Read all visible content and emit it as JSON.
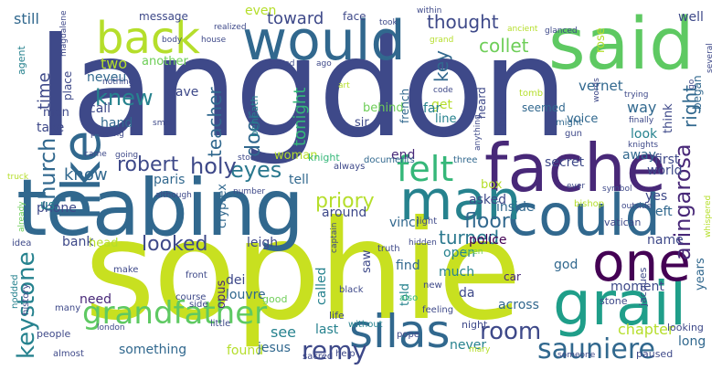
{
  "palette": {
    "dark_purple": "#440154",
    "purple": "#482878",
    "indigo": "#3e4989",
    "blue": "#31688e",
    "steel": "#26828e",
    "teal": "#1f9e89",
    "green": "#35b779",
    "lime": "#6ece58",
    "yellow_green": "#b5de2b",
    "yellow": "#fde725"
  },
  "words": [
    {
      "text": "langdon",
      "color": "#3e4989"
    },
    {
      "text": "sophie",
      "color": "#c8e020"
    },
    {
      "text": "teabing",
      "color": "#31688e"
    },
    {
      "text": "said",
      "color": "#5ec962"
    },
    {
      "text": "would",
      "color": "#31688e"
    },
    {
      "text": "fache",
      "color": "#482878"
    },
    {
      "text": "could",
      "color": "#31688e"
    },
    {
      "text": "back",
      "color": "#b5de2b"
    },
    {
      "text": "grail",
      "color": "#1f9e89"
    },
    {
      "text": "man",
      "color": "#26828e"
    },
    {
      "text": "one",
      "color": "#440154"
    },
    {
      "text": "like",
      "color": "#31688e"
    },
    {
      "text": "silas",
      "color": "#31688e"
    },
    {
      "text": "felt",
      "color": "#35b779"
    },
    {
      "text": "grandfather",
      "color": "#5ec962"
    },
    {
      "text": "keystone",
      "color": "#26828e"
    },
    {
      "text": "sauniere",
      "color": "#31688e"
    },
    {
      "text": "remy",
      "color": "#3e4989"
    },
    {
      "text": "room",
      "color": "#3e4989"
    },
    {
      "text": "church",
      "color": "#31688e"
    },
    {
      "text": "robert",
      "color": "#3e4989"
    },
    {
      "text": "eyes",
      "color": "#2a788e"
    },
    {
      "text": "knew",
      "color": "#26828e"
    },
    {
      "text": "holy",
      "color": "#3e4989"
    },
    {
      "text": "looked",
      "color": "#3e4989"
    },
    {
      "text": "turned",
      "color": "#2a788e"
    },
    {
      "text": "floor",
      "color": "#31688e"
    },
    {
      "text": "priory",
      "color": "#b5de2b"
    },
    {
      "text": "aringarosa",
      "color": "#482878"
    },
    {
      "text": "door",
      "color": "#31688e"
    },
    {
      "text": "teacher",
      "color": "#31688e"
    },
    {
      "text": "tonight",
      "color": "#35b779"
    },
    {
      "text": "key",
      "color": "#31688e"
    },
    {
      "text": "toward",
      "color": "#3e4989"
    },
    {
      "text": "thought",
      "color": "#3e4989"
    },
    {
      "text": "collet",
      "color": "#6ece58"
    },
    {
      "text": "time",
      "color": "#3e4989"
    },
    {
      "text": "right",
      "color": "#31688e"
    },
    {
      "text": "know",
      "color": "#31688e"
    },
    {
      "text": "see",
      "color": "#26828e"
    },
    {
      "text": "chapter",
      "color": "#b5de2b"
    },
    {
      "text": "way",
      "color": "#31688e"
    },
    {
      "text": "still",
      "color": "#31688e"
    },
    {
      "text": "even",
      "color": "#b5de2b"
    },
    {
      "text": "two",
      "color": "#b5de2b"
    },
    {
      "text": "first",
      "color": "#3e4989"
    },
    {
      "text": "away",
      "color": "#31688e"
    },
    {
      "text": "woman",
      "color": "#b5de2b"
    },
    {
      "text": "world",
      "color": "#3e4989"
    },
    {
      "text": "vernet",
      "color": "#31688e"
    },
    {
      "text": "secret",
      "color": "#3e4989"
    },
    {
      "text": "moment",
      "color": "#3e4989"
    },
    {
      "text": "across",
      "color": "#31688e"
    },
    {
      "text": "long",
      "color": "#31688e"
    },
    {
      "text": "found",
      "color": "#b5de2b"
    },
    {
      "text": "jesus",
      "color": "#31688e"
    },
    {
      "text": "never",
      "color": "#26828e"
    },
    {
      "text": "something",
      "color": "#31688e"
    },
    {
      "text": "need",
      "color": "#482878"
    },
    {
      "text": "last",
      "color": "#26828e"
    },
    {
      "text": "bank",
      "color": "#3e4989"
    },
    {
      "text": "head",
      "color": "#b5de2b"
    },
    {
      "text": "leigh",
      "color": "#3e4989"
    },
    {
      "text": "around",
      "color": "#3e4989"
    },
    {
      "text": "inside",
      "color": "#31688e"
    },
    {
      "text": "police",
      "color": "#440154"
    },
    {
      "text": "box",
      "color": "#b5de2b"
    },
    {
      "text": "end",
      "color": "#482878"
    },
    {
      "text": "asked",
      "color": "#3e4989"
    },
    {
      "text": "open",
      "color": "#26828e"
    },
    {
      "text": "find",
      "color": "#31688e"
    },
    {
      "text": "much",
      "color": "#26828e"
    },
    {
      "text": "da",
      "color": "#3e4989"
    },
    {
      "text": "vinci",
      "color": "#31688e"
    },
    {
      "text": "god",
      "color": "#31688e"
    },
    {
      "text": "yes",
      "color": "#3e4989"
    },
    {
      "text": "left",
      "color": "#31688e"
    },
    {
      "text": "name",
      "color": "#3e4989"
    },
    {
      "text": "look",
      "color": "#26828e"
    },
    {
      "text": "think",
      "color": "#3e4989"
    },
    {
      "text": "began",
      "color": "#31688e"
    },
    {
      "text": "years",
      "color": "#31688e"
    },
    {
      "text": "saw",
      "color": "#3e4989"
    },
    {
      "text": "called",
      "color": "#26828e"
    },
    {
      "text": "told",
      "color": "#26828e"
    },
    {
      "text": "opus",
      "color": "#482878"
    },
    {
      "text": "dei",
      "color": "#3e4989"
    },
    {
      "text": "louvre",
      "color": "#31688e"
    },
    {
      "text": "paris",
      "color": "#31688e"
    },
    {
      "text": "cryptex",
      "color": "#31688e"
    },
    {
      "text": "tell",
      "color": "#31688e"
    },
    {
      "text": "phone",
      "color": "#3e4989"
    },
    {
      "text": "us",
      "color": "#26828e"
    },
    {
      "text": "neveu",
      "color": "#31688e"
    },
    {
      "text": "gave",
      "color": "#3e4989"
    },
    {
      "text": "call",
      "color": "#3e4989"
    },
    {
      "text": "hand",
      "color": "#31688e"
    },
    {
      "text": "take",
      "color": "#3e4989"
    },
    {
      "text": "men",
      "color": "#3e4989"
    },
    {
      "text": "another",
      "color": "#6ece58"
    },
    {
      "text": "message",
      "color": "#3e4989"
    },
    {
      "text": "face",
      "color": "#3e4989"
    },
    {
      "text": "voice",
      "color": "#31688e"
    },
    {
      "text": "well",
      "color": "#3e4989"
    },
    {
      "text": "rose",
      "color": "#b5de2b"
    },
    {
      "text": "heard",
      "color": "#3e4989"
    },
    {
      "text": "get",
      "color": "#b5de2b"
    },
    {
      "text": "far",
      "color": "#26828e"
    },
    {
      "text": "line",
      "color": "#26828e"
    },
    {
      "text": "sir",
      "color": "#3e4989"
    },
    {
      "text": "behind",
      "color": "#6ece58"
    },
    {
      "text": "seemed",
      "color": "#31688e"
    },
    {
      "text": "french",
      "color": "#31688e"
    },
    {
      "text": "christ",
      "color": "#3e4989"
    },
    {
      "text": "beneath",
      "color": "#26828e"
    },
    {
      "text": "place",
      "color": "#3e4989"
    },
    {
      "text": "agent",
      "color": "#26828e"
    },
    {
      "text": "knight",
      "color": "#35b779"
    },
    {
      "text": "documents",
      "color": "#31688e"
    },
    {
      "text": "three",
      "color": "#31688e"
    },
    {
      "text": "might",
      "color": "#31688e"
    },
    {
      "text": "gun",
      "color": "#3e4989"
    },
    {
      "text": "jacques",
      "color": "#3e4989"
    },
    {
      "text": "stone",
      "color": "#3e4989"
    },
    {
      "text": "vatican",
      "color": "#3e4989"
    },
    {
      "text": "people",
      "color": "#3e4989"
    },
    {
      "text": "good",
      "color": "#6ece58"
    },
    {
      "text": "life",
      "color": "#3e4989"
    },
    {
      "text": "night",
      "color": "#3e4989"
    },
    {
      "text": "looking",
      "color": "#3e4989"
    },
    {
      "text": "paused",
      "color": "#3e4989"
    },
    {
      "text": "tomb",
      "color": "#b5de2b"
    },
    {
      "text": "light",
      "color": "#3e4989"
    },
    {
      "text": "history",
      "color": "#3e4989"
    },
    {
      "text": "many",
      "color": "#3e4989"
    },
    {
      "text": "make",
      "color": "#3e4989"
    },
    {
      "text": "car",
      "color": "#482878"
    },
    {
      "text": "truth",
      "color": "#3e4989"
    },
    {
      "text": "word",
      "color": "#3e4989"
    },
    {
      "text": "pope",
      "color": "#3e4989"
    },
    {
      "text": "nodded",
      "color": "#26828e"
    },
    {
      "text": "idea",
      "color": "#3e4989"
    },
    {
      "text": "always",
      "color": "#3e4989"
    },
    {
      "text": "little",
      "color": "#3e4989"
    },
    {
      "text": "almost",
      "color": "#3e4989"
    },
    {
      "text": "side",
      "color": "#3e4989"
    },
    {
      "text": "course",
      "color": "#3e4989"
    },
    {
      "text": "front",
      "color": "#3e4989"
    },
    {
      "text": "help",
      "color": "#3e4989"
    },
    {
      "text": "black",
      "color": "#3e4989"
    },
    {
      "text": "sacred",
      "color": "#3e4989"
    },
    {
      "text": "without",
      "color": "#26828e"
    },
    {
      "text": "feeling",
      "color": "#3e4989"
    },
    {
      "text": "also",
      "color": "#35b779"
    },
    {
      "text": "new",
      "color": "#3e4989"
    },
    {
      "text": "hidden",
      "color": "#3e4989"
    },
    {
      "text": "seen",
      "color": "#6ece58"
    },
    {
      "text": "bishop",
      "color": "#b5de2b"
    },
    {
      "text": "captain",
      "color": "#3e4989"
    },
    {
      "text": "although",
      "color": "#3e4989"
    },
    {
      "text": "number",
      "color": "#3e4989"
    },
    {
      "text": "stood",
      "color": "#3e4989"
    },
    {
      "text": "going",
      "color": "#3e4989"
    },
    {
      "text": "came",
      "color": "#3e4989"
    },
    {
      "text": "truck",
      "color": "#b5de2b"
    },
    {
      "text": "already",
      "color": "#6ece58"
    },
    {
      "text": "london",
      "color": "#3e4989"
    },
    {
      "text": "someone",
      "color": "#3e4989"
    },
    {
      "text": "mary",
      "color": "#b5de2b"
    },
    {
      "text": "symbol",
      "color": "#3e4989"
    },
    {
      "text": "outside",
      "color": "#3e4989"
    },
    {
      "text": "ever",
      "color": "#3e4989"
    },
    {
      "text": "knights",
      "color": "#3e4989"
    },
    {
      "text": "finally",
      "color": "#3e4989"
    },
    {
      "text": "trying",
      "color": "#3e4989"
    },
    {
      "text": "go",
      "color": "#3e4989"
    },
    {
      "text": "whispered",
      "color": "#b5de2b"
    },
    {
      "text": "anything",
      "color": "#3e4989"
    },
    {
      "text": "code",
      "color": "#3e4989"
    },
    {
      "text": "moved",
      "color": "#3e4989"
    },
    {
      "text": "painting",
      "color": "#3e4989"
    },
    {
      "text": "small",
      "color": "#3e4989"
    },
    {
      "text": "art",
      "color": "#b5de2b"
    },
    {
      "text": "nothing",
      "color": "#3e4989"
    },
    {
      "text": "magdalene",
      "color": "#3e4989"
    },
    {
      "text": "body",
      "color": "#3e4989"
    },
    {
      "text": "house",
      "color": "#3e4989"
    },
    {
      "text": "realized",
      "color": "#3e4989"
    },
    {
      "text": "stared",
      "color": "#3e4989"
    },
    {
      "text": "ago",
      "color": "#3e4989"
    },
    {
      "text": "within",
      "color": "#3e4989"
    },
    {
      "text": "took",
      "color": "#3e4989"
    },
    {
      "text": "grand",
      "color": "#b5de2b"
    },
    {
      "text": "ancient",
      "color": "#b5de2b"
    },
    {
      "text": "glanced",
      "color": "#3e4989"
    },
    {
      "text": "words",
      "color": "#3e4989"
    },
    {
      "text": "several",
      "color": "#3e4989"
    }
  ]
}
